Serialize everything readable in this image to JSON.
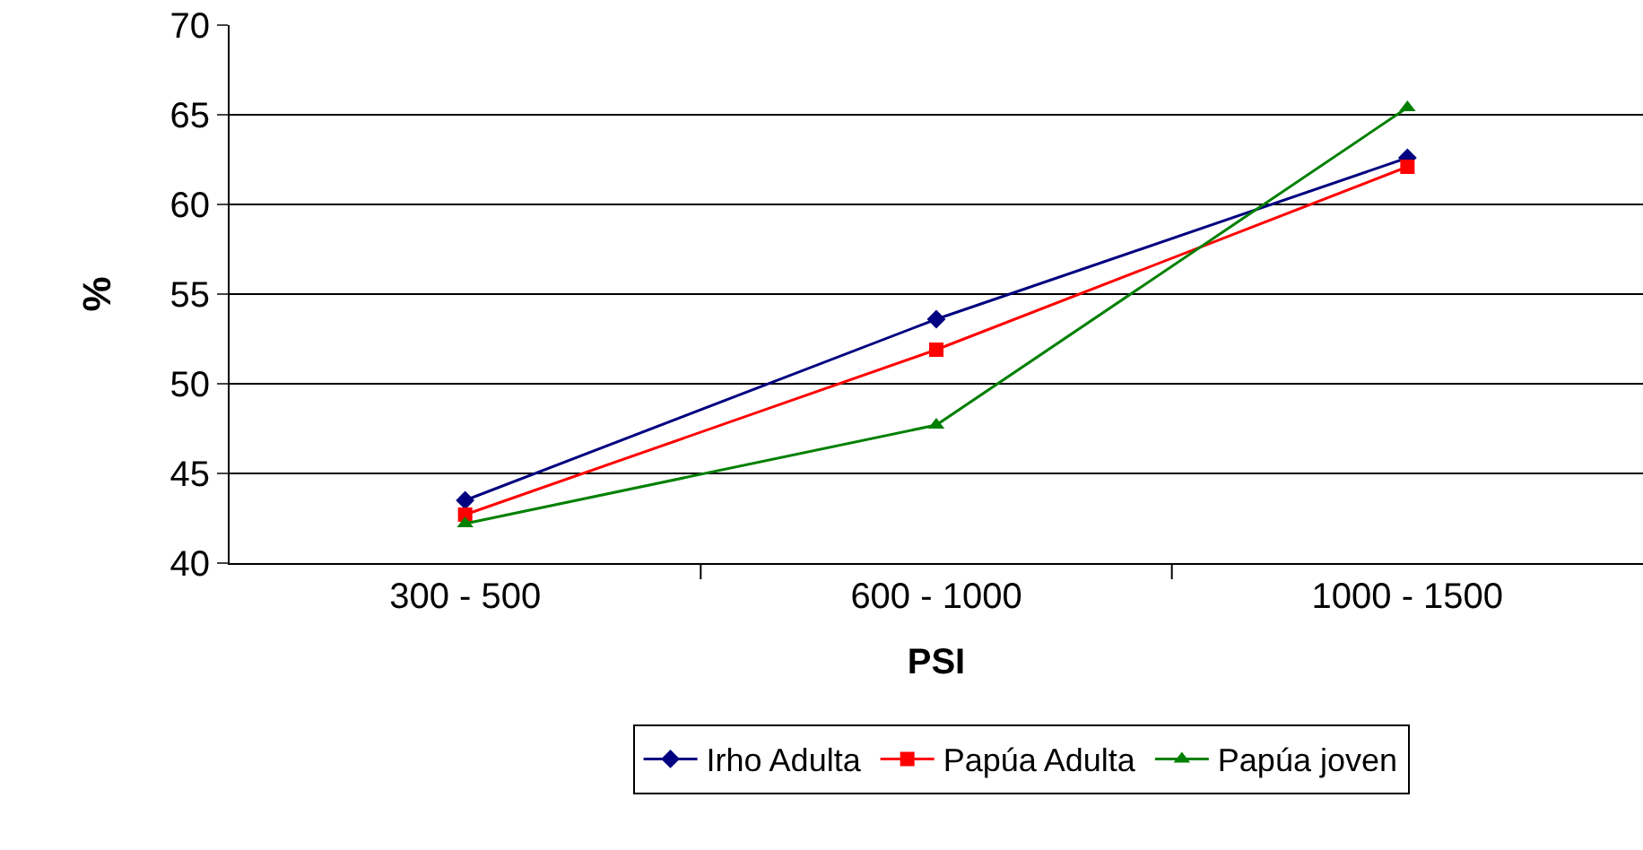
{
  "chart_data": {
    "type": "line",
    "xlabel": "PSI",
    "ylabel": "%",
    "categories": [
      "300 - 500",
      "600 - 1000",
      "1000 - 1500"
    ],
    "series": [
      {
        "name": "Irho Adulta",
        "color": "#000080",
        "marker": "diamond",
        "values": [
          43.5,
          53.6,
          62.6
        ]
      },
      {
        "name": "Papúa Adulta",
        "color": "#ff0000",
        "marker": "square",
        "values": [
          42.7,
          51.9,
          62.1
        ]
      },
      {
        "name": "Papúa joven",
        "color": "#008000",
        "marker": "triangle",
        "values": [
          42.2,
          47.7,
          65.4
        ]
      }
    ],
    "ylim": [
      40,
      70
    ],
    "yticks": [
      40,
      45,
      50,
      55,
      60,
      65,
      70
    ],
    "grid": "y",
    "legend": "bottom",
    "line_style": "solid"
  }
}
